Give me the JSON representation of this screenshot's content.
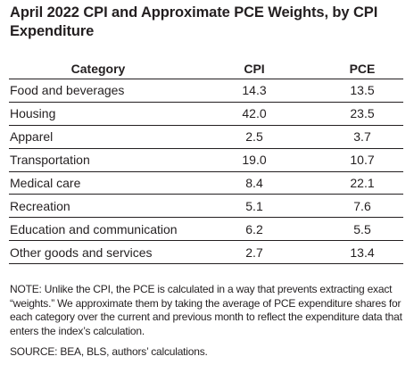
{
  "chart_data": {
    "type": "table",
    "title": "April 2022 CPI and Approximate PCE Weights, by CPI Expenditure",
    "columns": [
      "Category",
      "CPI",
      "PCE"
    ],
    "rows": [
      {
        "category": "Food and beverages",
        "cpi": "14.3",
        "pce": "13.5"
      },
      {
        "category": "Housing",
        "cpi": "42.0",
        "pce": "23.5"
      },
      {
        "category": "Apparel",
        "cpi": "2.5",
        "pce": "3.7"
      },
      {
        "category": "Transportation",
        "cpi": "19.0",
        "pce": "10.7"
      },
      {
        "category": "Medical care",
        "cpi": "8.4",
        "pce": "22.1"
      },
      {
        "category": "Recreation",
        "cpi": "5.1",
        "pce": "7.6"
      },
      {
        "category": "Education and communication",
        "cpi": "6.2",
        "pce": "5.5"
      },
      {
        "category": "Other goods and services",
        "cpi": "2.7",
        "pce": "13.4"
      }
    ],
    "note": "NOTE: Unlike the CPI, the PCE is calculated in a way that prevents extracting exact “weights.” We approximate them by taking the average of PCE expenditure shares for each category over the current and previous month to reflect the expenditure data that enters the index’s calculation.",
    "source": "SOURCE: BEA, BLS, authors’ calculations."
  }
}
